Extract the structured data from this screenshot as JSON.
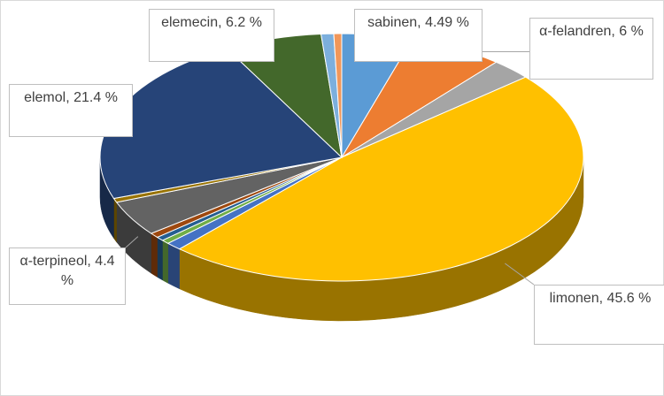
{
  "chart_data": {
    "type": "pie",
    "values": [
      4.49,
      6,
      2.6,
      45.6,
      1,
      0.5,
      0.5,
      0.6,
      4.4,
      0.5,
      21.4,
      6.2,
      0.8,
      0.5
    ],
    "colors": [
      "#5b9bd5",
      "#ed7d31",
      "#a5a5a5",
      "#ffc000",
      "#4472c4",
      "#70ad47",
      "#255e91",
      "#9e480e",
      "#636363",
      "#997300",
      "#264478",
      "#43682b",
      "#7cafdd",
      "#f1975a"
    ],
    "value_labels": [
      "sabinen, 4.49 %",
      "α-felandren, 6 %",
      null,
      "limonen, 45.6 %",
      null,
      null,
      null,
      null,
      "α-terpineol, 4.4 %",
      null,
      "elemol, 21.4 %",
      "elemecin, 6.2 %",
      null,
      null
    ]
  }
}
